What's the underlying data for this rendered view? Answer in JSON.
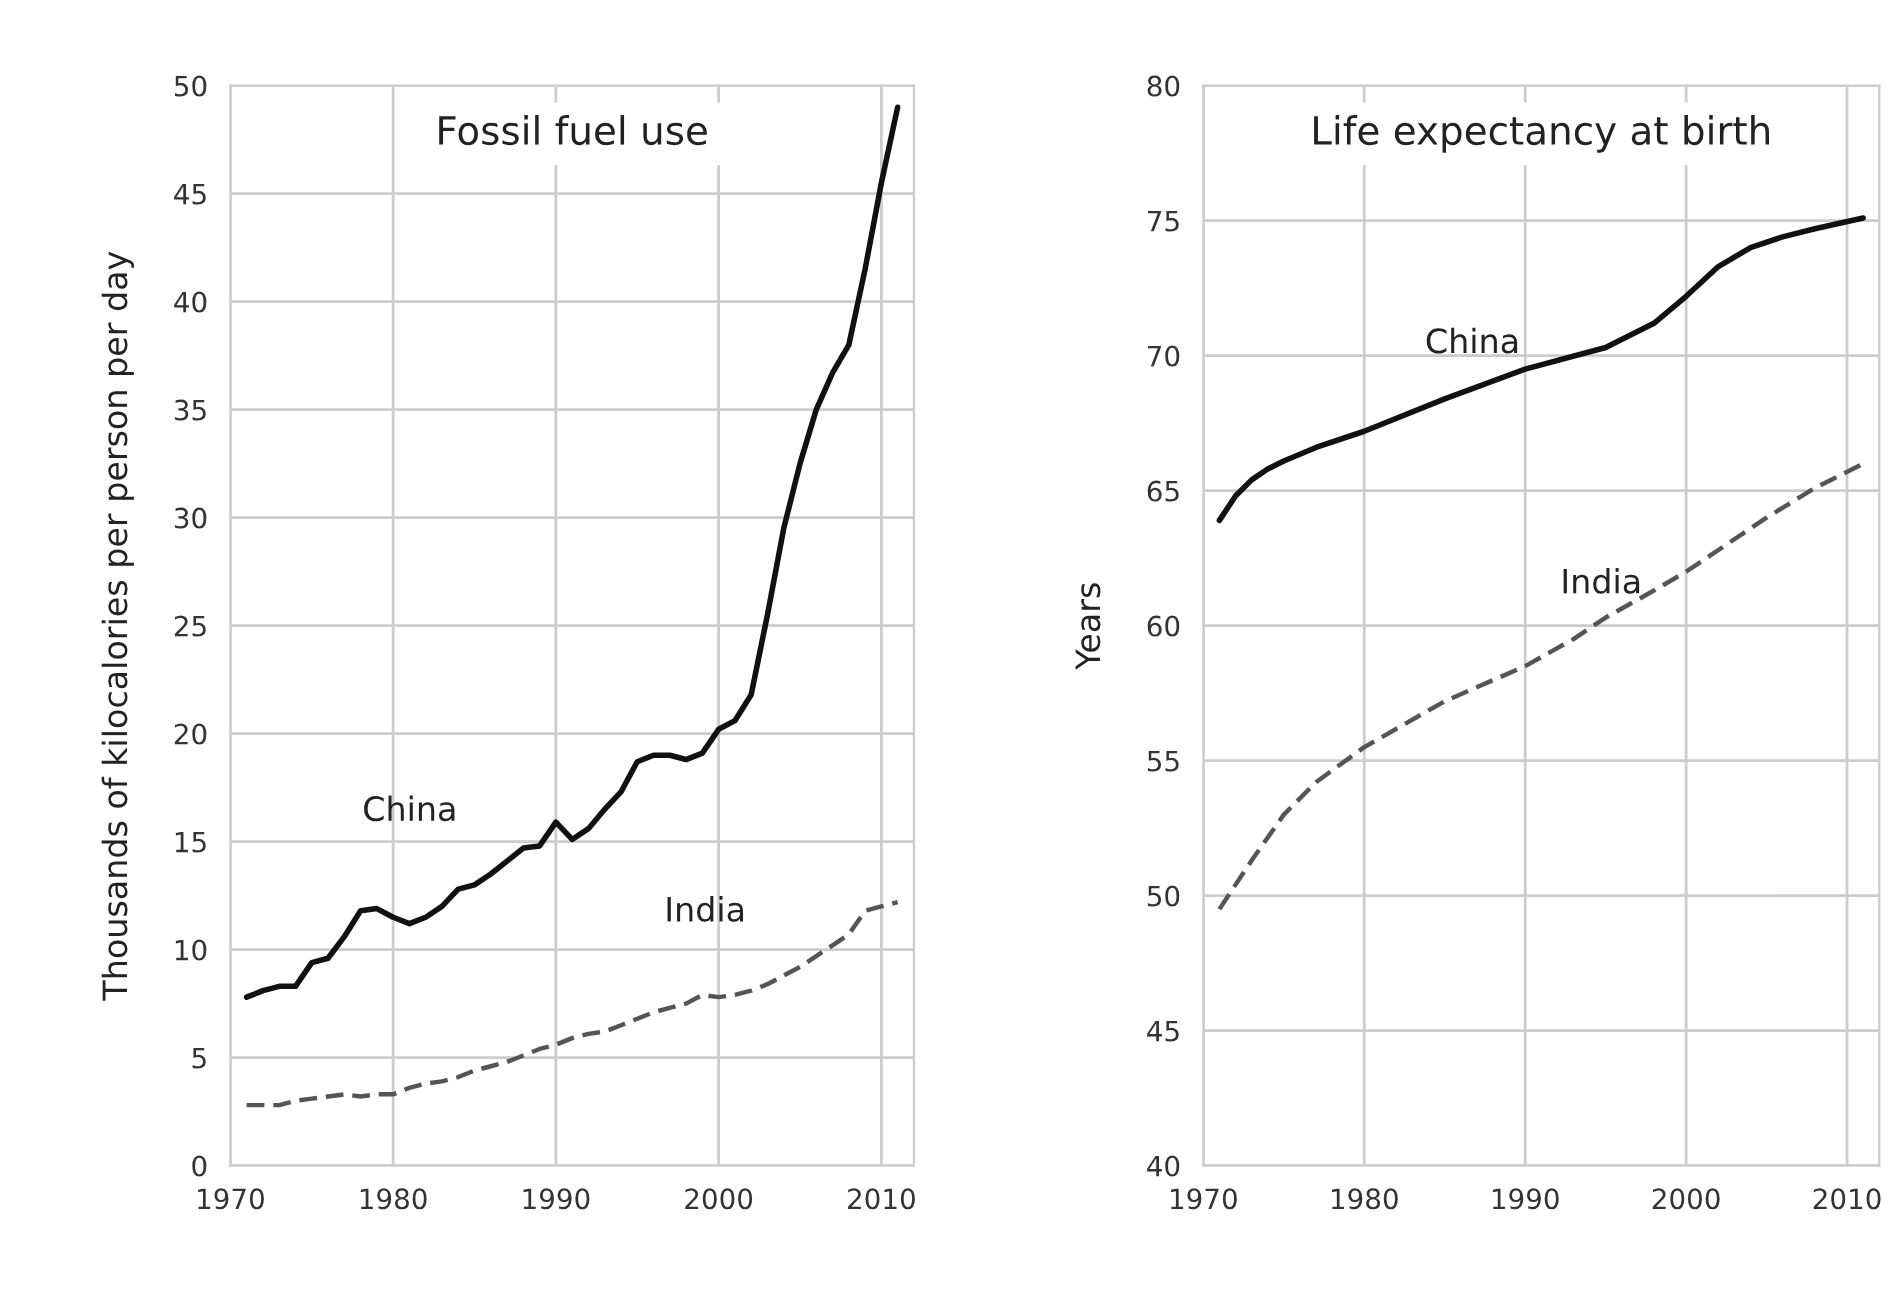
{
  "chart_data": [
    {
      "type": "line",
      "title": "Fossil fuel use",
      "ylabel": "Thousands of kilocalories per person per day",
      "xlim": [
        1970,
        2012
      ],
      "xticks": [
        1970,
        1980,
        1990,
        2000,
        2010
      ],
      "ylim": [
        0,
        50
      ],
      "yticks": [
        0,
        5,
        10,
        15,
        20,
        25,
        30,
        35,
        40,
        45,
        50
      ],
      "grid": true,
      "marker": "none",
      "x": [
        1971,
        1972,
        1973,
        1974,
        1975,
        1976,
        1977,
        1978,
        1979,
        1980,
        1981,
        1982,
        1983,
        1984,
        1985,
        1986,
        1987,
        1988,
        1989,
        1990,
        1991,
        1992,
        1993,
        1994,
        1995,
        1996,
        1997,
        1998,
        1999,
        2000,
        2001,
        2002,
        2003,
        2004,
        2005,
        2006,
        2007,
        2008,
        2009,
        2010,
        2011
      ],
      "series": [
        {
          "name": "China",
          "color": "#111111",
          "line_style": "solid",
          "values": [
            7.8,
            8.1,
            8.3,
            8.3,
            9.4,
            9.6,
            10.6,
            11.8,
            11.9,
            11.5,
            11.2,
            11.5,
            12.0,
            12.8,
            13.0,
            13.5,
            14.1,
            14.7,
            14.8,
            15.9,
            15.1,
            15.6,
            16.5,
            17.3,
            18.7,
            19.0,
            19.0,
            18.8,
            19.1,
            20.2,
            20.6,
            21.8,
            25.5,
            29.5,
            32.5,
            35.0,
            36.7,
            38.0,
            41.5,
            45.5,
            49.0
          ]
        },
        {
          "name": "India",
          "color": "#555555",
          "line_style": "dashed",
          "values": [
            2.8,
            2.8,
            2.8,
            3.0,
            3.1,
            3.2,
            3.3,
            3.2,
            3.3,
            3.3,
            3.6,
            3.8,
            3.9,
            4.1,
            4.4,
            4.6,
            4.8,
            5.1,
            5.4,
            5.6,
            5.9,
            6.1,
            6.2,
            6.5,
            6.8,
            7.1,
            7.3,
            7.5,
            7.9,
            7.8,
            7.9,
            8.1,
            8.4,
            8.8,
            9.2,
            9.7,
            10.2,
            10.7,
            11.8,
            12.0,
            12.2
          ]
        }
      ]
    },
    {
      "type": "line",
      "title": "Life expectancy at birth",
      "ylabel": "Years",
      "xlim": [
        1970,
        2012
      ],
      "xticks": [
        1970,
        1980,
        1990,
        2000,
        2010
      ],
      "ylim": [
        40,
        80
      ],
      "yticks": [
        40,
        45,
        50,
        55,
        60,
        65,
        70,
        75,
        80
      ],
      "grid": true,
      "marker": "none",
      "series": [
        {
          "name": "China",
          "color": "#111111",
          "line_style": "solid",
          "x": [
            1971,
            1972,
            1973,
            1974,
            1975,
            1977,
            1980,
            1985,
            1990,
            1995,
            1998,
            2000,
            2002,
            2004,
            2006,
            2008,
            2011
          ],
          "values": [
            63.9,
            64.8,
            65.4,
            65.8,
            66.1,
            66.6,
            67.2,
            68.4,
            69.5,
            70.3,
            71.2,
            72.2,
            73.3,
            74.0,
            74.4,
            74.7,
            75.1
          ]
        },
        {
          "name": "India",
          "color": "#555555",
          "line_style": "dashed",
          "x": [
            1971,
            1973,
            1975,
            1977,
            1980,
            1985,
            1990,
            1993,
            1995,
            1998,
            2000,
            2003,
            2005,
            2008,
            2011
          ],
          "values": [
            49.5,
            51.3,
            53.0,
            54.2,
            55.5,
            57.2,
            58.5,
            59.5,
            60.3,
            61.3,
            62.0,
            63.2,
            64.0,
            65.1,
            66.0
          ]
        }
      ]
    }
  ]
}
